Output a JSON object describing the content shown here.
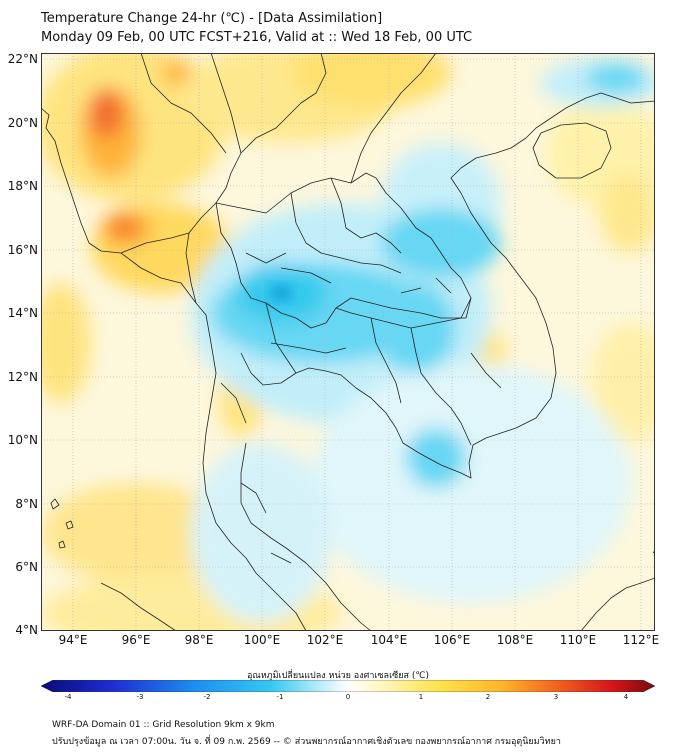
{
  "titles": {
    "line1": "Temperature Change 24-hr (℃) - [Data Assimilation]",
    "line2": "Monday 09 Feb, 00 UTC FCST+216, Valid at :: Wed 18 Feb, 00 UTC"
  },
  "map": {
    "lat_labels": [
      "22°N",
      "20°N",
      "18°N",
      "16°N",
      "14°N",
      "12°N",
      "10°N",
      "8°N",
      "6°N",
      "4°N"
    ],
    "lon_labels": [
      "94°E",
      "96°E",
      "98°E",
      "100°E",
      "102°E",
      "104°E",
      "106°E",
      "108°E",
      "110°E",
      "112°E"
    ],
    "lat_range": [
      4,
      22.2
    ],
    "lon_range": [
      93.0,
      112.4
    ],
    "colors": {
      "cold": "#29c8f0",
      "cool": "#bfeefb",
      "warm": "#ffe066",
      "hot": "#ff9f1c",
      "hottest": "#f2692a",
      "border": "#222222"
    }
  },
  "colorbar": {
    "title": "อุณหภูมิเปลี่ยนแปลง หน่วย องศาเซลเซียส (℃)",
    "ticks": [
      "-4",
      "-3",
      "-2",
      "-1",
      "0",
      "1",
      "2",
      "3",
      "4"
    ],
    "range": [
      -4,
      4
    ]
  },
  "footer": {
    "line1": "WRF-DA Domain 01 :: Grid Resolution 9km x 9km",
    "line2": "ปรับปรุงข้อมูล ณ เวลา 07:00น. วัน จ. ที่ 09 ก.พ. 2569 -- © ส่วนพยากรณ์อากาศเชิงตัวเลข กองพยากรณ์อากาศ กรมอุตุนิยมวิทยา"
  }
}
